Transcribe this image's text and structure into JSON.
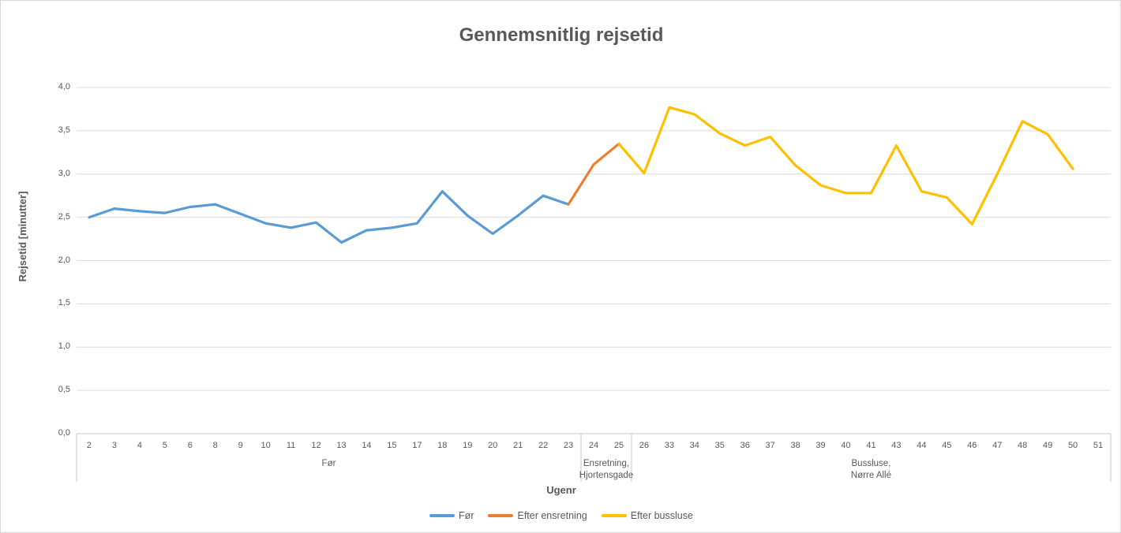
{
  "title": "Gennemsnitlig rejsetid",
  "axes": {
    "y_title": "Rejsetid [minutter]",
    "x_title": "Ugenr",
    "y_ticks": [
      "0,0",
      "0,5",
      "1,0",
      "1,5",
      "2,0",
      "2,5",
      "3,0",
      "3,5",
      "4,0"
    ]
  },
  "colors": {
    "text": "#595959",
    "gridline": "#dcdcdc",
    "axis_line": "#c8c8c8"
  },
  "chart_data": {
    "type": "line",
    "title": "Gennemsnitlig rejsetid",
    "xlabel": "Ugenr",
    "ylabel": "Rejsetid [minutter]",
    "ylim": [
      0.0,
      4.0
    ],
    "ytick_step": 0.5,
    "grid": true,
    "legend_position": "bottom",
    "categories": [
      "2",
      "3",
      "4",
      "5",
      "6",
      "8",
      "9",
      "10",
      "11",
      "12",
      "13",
      "14",
      "15",
      "17",
      "18",
      "19",
      "20",
      "21",
      "22",
      "23",
      "24",
      "25",
      "26",
      "33",
      "34",
      "35",
      "36",
      "37",
      "38",
      "39",
      "40",
      "41",
      "43",
      "44",
      "45",
      "46",
      "47",
      "48",
      "49",
      "50",
      "51"
    ],
    "category_groups": [
      {
        "lines": [
          "Før"
        ],
        "start": 0,
        "end": 19
      },
      {
        "lines": [
          "Ensretning,",
          "Hjortensgade"
        ],
        "start": 20,
        "end": 21
      },
      {
        "lines": [
          "Bussluse,",
          "Nørre Allé"
        ],
        "start": 22,
        "end": 40
      }
    ],
    "series": [
      {
        "name": "Før",
        "color": "#5B9BD5",
        "values": [
          2.5,
          2.6,
          2.57,
          2.55,
          2.62,
          2.65,
          2.54,
          2.43,
          2.38,
          2.44,
          2.21,
          2.35,
          2.38,
          2.43,
          2.8,
          2.52,
          2.31,
          2.52,
          2.75,
          2.65,
          null,
          null,
          null,
          null,
          null,
          null,
          null,
          null,
          null,
          null,
          null,
          null,
          null,
          null,
          null,
          null,
          null,
          null,
          null,
          null,
          null
        ]
      },
      {
        "name": "Efter ensretning",
        "color": "#ED7D31",
        "values": [
          null,
          null,
          null,
          null,
          null,
          null,
          null,
          null,
          null,
          null,
          null,
          null,
          null,
          null,
          null,
          null,
          null,
          null,
          null,
          2.65,
          3.11,
          3.35,
          null,
          null,
          null,
          null,
          null,
          null,
          null,
          null,
          null,
          null,
          null,
          null,
          null,
          null,
          null,
          null,
          null,
          null,
          null
        ]
      },
      {
        "name": "Efter bussluse",
        "color": "#FFC000",
        "values": [
          null,
          null,
          null,
          null,
          null,
          null,
          null,
          null,
          null,
          null,
          null,
          null,
          null,
          null,
          null,
          null,
          null,
          null,
          null,
          null,
          null,
          3.35,
          3.01,
          3.77,
          3.69,
          3.47,
          3.33,
          3.43,
          3.1,
          2.87,
          2.78,
          2.78,
          3.33,
          2.8,
          2.73,
          2.42,
          3.0,
          3.61,
          3.46,
          3.06,
          null
        ]
      }
    ]
  }
}
